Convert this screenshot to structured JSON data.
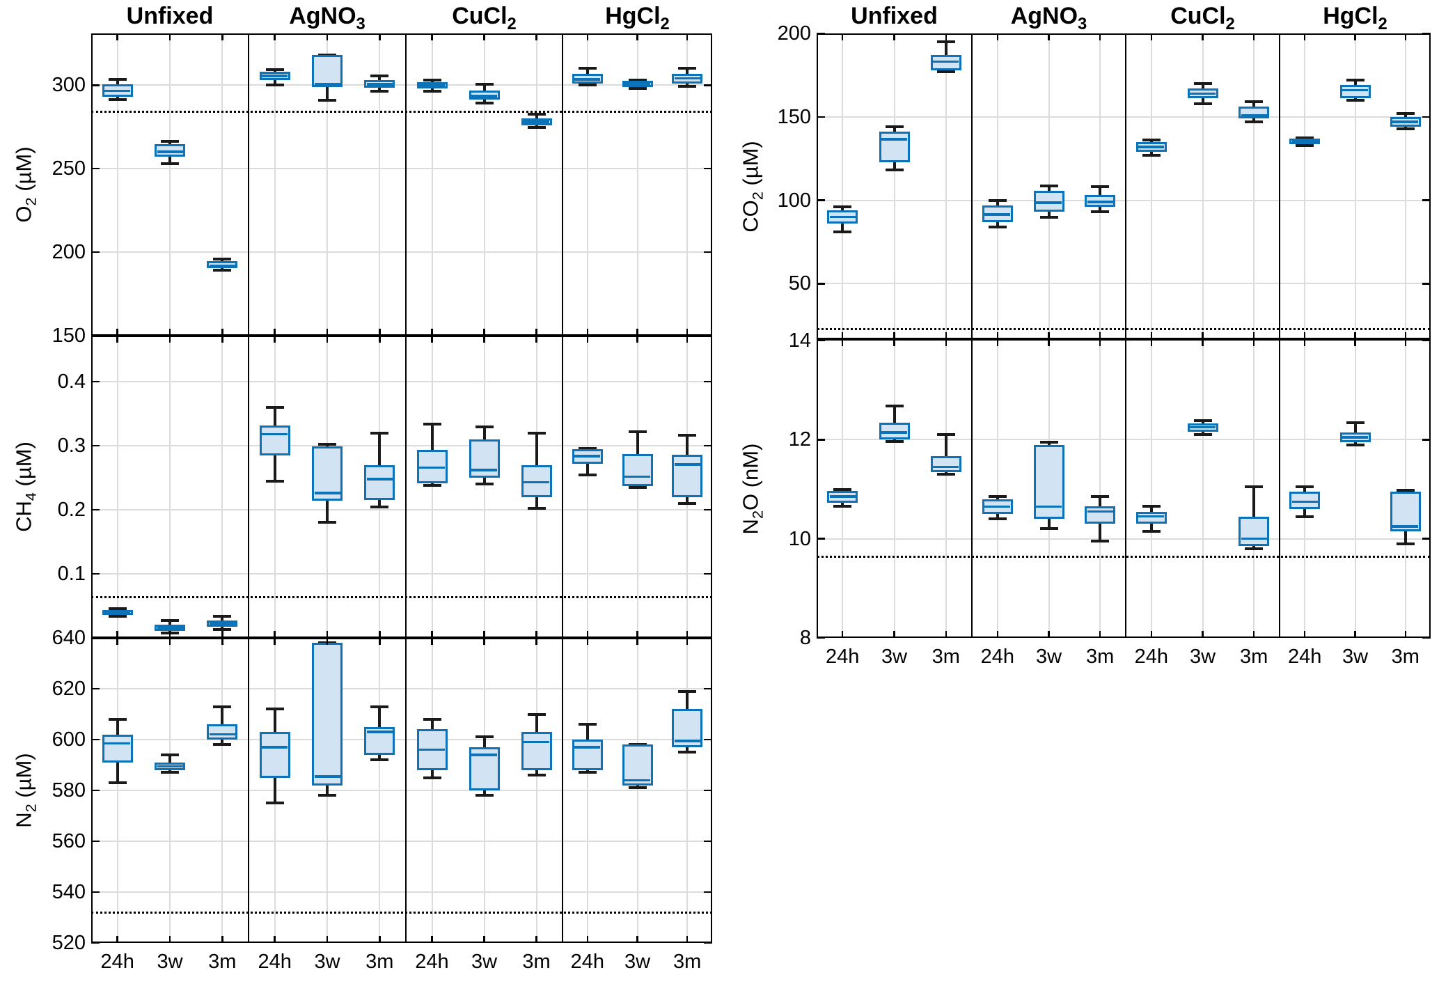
{
  "figure": {
    "background": "#ffffff",
    "colors": {
      "box_border": "#0d73b8",
      "box_fill": "#d2e4f4",
      "median": "#0d73b8",
      "whisker": "#1a1a1a",
      "grid": "#dcdcdc",
      "axis": "#000000",
      "reference_line": "#000000"
    },
    "treatments": [
      {
        "id": "Unfixed",
        "label_parts": [
          {
            "t": "Unfixed"
          }
        ]
      },
      {
        "id": "AgNO3",
        "label_parts": [
          {
            "t": "AgNO"
          },
          {
            "t": "3",
            "sub": true
          }
        ]
      },
      {
        "id": "CuCl2",
        "label_parts": [
          {
            "t": "CuCl"
          },
          {
            "t": "2",
            "sub": true
          }
        ]
      },
      {
        "id": "HgCl2",
        "label_parts": [
          {
            "t": "HgCl"
          },
          {
            "t": "2",
            "sub": true
          }
        ]
      }
    ],
    "categories": [
      "24h",
      "3w",
      "3m"
    ],
    "box_stats_order": [
      "whisker_low",
      "q1",
      "median",
      "q3",
      "whisker_high"
    ]
  },
  "chart_data": [
    {
      "id": "o2",
      "type": "box",
      "ylabel_parts": [
        {
          "t": "O"
        },
        {
          "t": "2",
          "sub": true
        },
        {
          "t": " (µM)"
        }
      ],
      "ylim": [
        150,
        331
      ],
      "yticks": [
        {
          "v": 150,
          "t": "150"
        },
        {
          "v": 200,
          "t": "200"
        },
        {
          "v": 250,
          "t": "250"
        },
        {
          "v": 300,
          "t": "300"
        }
      ],
      "ref_line": 284,
      "boxes": {
        "Unfixed": {
          "24h": [
            291.5,
            293,
            296.5,
            300.5,
            303.5
          ],
          "3w": [
            253,
            257,
            260,
            264.5,
            266.5
          ],
          "3m": [
            189,
            190.5,
            192,
            194.5,
            196
          ]
        },
        "AgNO3": {
          "24h": [
            300,
            303,
            305.5,
            308,
            309.5
          ],
          "3w": [
            291,
            299,
            300.5,
            318,
            318
          ],
          "3m": [
            296.5,
            298.5,
            300.5,
            303,
            305.5
          ]
        },
        "CuCl2": {
          "24h": [
            296.5,
            298,
            300,
            302,
            303
          ],
          "3w": [
            289.5,
            291.5,
            293.5,
            297,
            300.5
          ],
          "3m": [
            274.5,
            276,
            278,
            280,
            282.5
          ]
        },
        "HgCl2": {
          "24h": [
            300,
            301,
            303.5,
            307,
            310
          ],
          "3w": [
            298,
            299,
            300.5,
            302.5,
            303
          ],
          "3m": [
            299.5,
            301,
            304,
            307,
            310
          ]
        }
      }
    },
    {
      "id": "ch4",
      "type": "box",
      "ylabel_parts": [
        {
          "t": "CH"
        },
        {
          "t": "4",
          "sub": true
        },
        {
          "t": " (µM)"
        }
      ],
      "ylim": [
        0,
        0.472
      ],
      "yticks": [
        {
          "v": 0.1,
          "t": "0.1"
        },
        {
          "v": 0.2,
          "t": "0.2"
        },
        {
          "v": 0.3,
          "t": "0.3"
        },
        {
          "v": 0.4,
          "t": "0.4"
        }
      ],
      "ref_line": 0.064,
      "boxes": {
        "Unfixed": {
          "24h": [
            0.034,
            0.036,
            0.04,
            0.044,
            0.046
          ],
          "3w": [
            0.008,
            0.011,
            0.016,
            0.021,
            0.027
          ],
          "3m": [
            0.013,
            0.017,
            0.022,
            0.027,
            0.034
          ]
        },
        "AgNO3": {
          "24h": [
            0.245,
            0.285,
            0.318,
            0.332,
            0.36
          ],
          "3w": [
            0.18,
            0.214,
            0.226,
            0.299,
            0.302
          ],
          "3m": [
            0.205,
            0.215,
            0.248,
            0.27,
            0.32
          ]
        },
        "CuCl2": {
          "24h": [
            0.238,
            0.241,
            0.266,
            0.294,
            0.334
          ],
          "3w": [
            0.24,
            0.25,
            0.262,
            0.31,
            0.33
          ],
          "3m": [
            0.202,
            0.22,
            0.243,
            0.27,
            0.32
          ]
        },
        "HgCl2": {
          "24h": [
            0.255,
            0.272,
            0.284,
            0.295,
            0.296
          ],
          "3w": [
            0.235,
            0.237,
            0.252,
            0.287,
            0.322
          ],
          "3m": [
            0.21,
            0.22,
            0.271,
            0.286,
            0.316
          ]
        }
      }
    },
    {
      "id": "n2",
      "type": "box",
      "ylabel_parts": [
        {
          "t": "N"
        },
        {
          "t": "2",
          "sub": true
        },
        {
          "t": " (µM)"
        }
      ],
      "ylim": [
        520,
        640
      ],
      "yticks": [
        {
          "v": 520,
          "t": "520"
        },
        {
          "v": 540,
          "t": "540"
        },
        {
          "v": 560,
          "t": "560"
        },
        {
          "v": 580,
          "t": "580"
        },
        {
          "v": 600,
          "t": "600"
        },
        {
          "v": 620,
          "t": "620"
        },
        {
          "v": 640,
          "t": "640"
        }
      ],
      "ref_line": 532,
      "boxes": {
        "Unfixed": {
          "24h": [
            583,
            591,
            598.5,
            602,
            608
          ],
          "3w": [
            587,
            588,
            589.5,
            591,
            594
          ],
          "3m": [
            598,
            600,
            602,
            606,
            613
          ]
        },
        "AgNO3": {
          "24h": [
            575,
            585,
            597,
            603,
            612
          ],
          "3w": [
            578,
            582,
            585.5,
            638,
            638
          ],
          "3m": [
            592,
            594,
            603,
            605,
            613
          ]
        },
        "CuCl2": {
          "24h": [
            585,
            588,
            596,
            604,
            608
          ],
          "3w": [
            578,
            580,
            594,
            597,
            601
          ],
          "3m": [
            586,
            588,
            599,
            603,
            610
          ]
        },
        "HgCl2": {
          "24h": [
            587,
            588,
            597,
            600,
            606
          ],
          "3w": [
            581,
            582,
            584,
            598,
            598
          ],
          "3m": [
            595,
            597,
            599.5,
            612,
            619
          ]
        }
      }
    },
    {
      "id": "co2",
      "type": "box",
      "ylabel_parts": [
        {
          "t": "CO"
        },
        {
          "t": "2",
          "sub": true
        },
        {
          "t": " (µM)"
        }
      ],
      "ylim": [
        16.8,
        200
      ],
      "yticks": [
        {
          "v": 50,
          "t": "50"
        },
        {
          "v": 100,
          "t": "100"
        },
        {
          "v": 150,
          "t": "150"
        },
        {
          "v": 200,
          "t": "200"
        }
      ],
      "ref_line": 23,
      "boxes": {
        "Unfixed": {
          "24h": [
            81,
            86,
            90,
            94,
            96
          ],
          "3w": [
            118,
            123,
            136.5,
            141,
            144
          ],
          "3m": [
            177,
            178,
            183,
            187,
            195
          ]
        },
        "AgNO3": {
          "24h": [
            84,
            87,
            91.5,
            97,
            100
          ],
          "3w": [
            90,
            93,
            98.5,
            105.5,
            108.5
          ],
          "3m": [
            93,
            96,
            99,
            103,
            108
          ]
        },
        "CuCl2": {
          "24h": [
            127,
            129,
            132,
            135,
            136
          ],
          "3w": [
            158,
            161,
            164,
            167,
            170
          ],
          "3m": [
            147,
            149,
            151,
            156,
            159
          ]
        },
        "HgCl2": {
          "24h": [
            133,
            133.5,
            135,
            137,
            137.5
          ],
          "3w": [
            160,
            161,
            166,
            169,
            172
          ],
          "3m": [
            143,
            144,
            147,
            150,
            152
          ]
        }
      }
    },
    {
      "id": "n2o",
      "type": "box",
      "ylabel_parts": [
        {
          "t": "N"
        },
        {
          "t": "2",
          "sub": true
        },
        {
          "t": "O (nM)"
        }
      ],
      "ylim": [
        8,
        14.03
      ],
      "yticks": [
        {
          "v": 8,
          "t": "8"
        },
        {
          "v": 10,
          "t": "10"
        },
        {
          "v": 12,
          "t": "12"
        },
        {
          "v": 14,
          "t": "14"
        }
      ],
      "ref_line": 9.64,
      "boxes": {
        "Unfixed": {
          "24h": [
            10.66,
            10.73,
            10.85,
            10.97,
            10.99
          ],
          "3w": [
            11.97,
            12.0,
            12.15,
            12.35,
            12.68
          ],
          "3m": [
            11.3,
            11.35,
            11.45,
            11.67,
            12.1
          ]
        },
        "AgNO3": {
          "24h": [
            10.4,
            10.5,
            10.65,
            10.8,
            10.85
          ],
          "3w": [
            10.2,
            10.4,
            10.65,
            11.9,
            11.95
          ],
          "3m": [
            9.95,
            10.3,
            10.55,
            10.65,
            10.85
          ]
        },
        "CuCl2": {
          "24h": [
            10.15,
            10.3,
            10.45,
            10.55,
            10.65
          ],
          "3w": [
            12.1,
            12.16,
            12.25,
            12.33,
            12.38
          ],
          "3m": [
            9.8,
            9.85,
            10.0,
            10.45,
            11.05
          ]
        },
        "HgCl2": {
          "24h": [
            10.45,
            10.6,
            10.75,
            10.95,
            11.05
          ],
          "3w": [
            11.9,
            11.95,
            12.05,
            12.15,
            12.35
          ],
          "3m": [
            9.9,
            10.15,
            10.25,
            10.95,
            10.98
          ]
        }
      }
    }
  ]
}
